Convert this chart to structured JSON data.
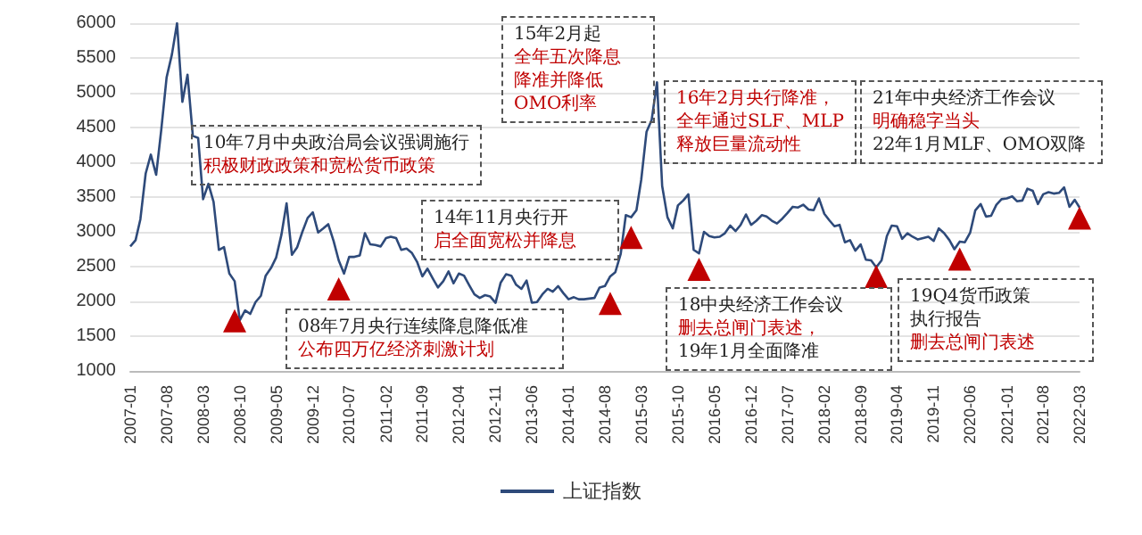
{
  "chart_data": {
    "type": "line",
    "x": [
      "2007-01",
      "2007-02",
      "2007-03",
      "2007-04",
      "2007-05",
      "2007-06",
      "2007-07",
      "2007-08",
      "2007-09",
      "2007-10",
      "2007-11",
      "2007-12",
      "2008-01",
      "2008-02",
      "2008-03",
      "2008-04",
      "2008-05",
      "2008-06",
      "2008-07",
      "2008-08",
      "2008-09",
      "2008-10",
      "2008-11",
      "2008-12",
      "2009-01",
      "2009-02",
      "2009-03",
      "2009-04",
      "2009-05",
      "2009-06",
      "2009-07",
      "2009-08",
      "2009-09",
      "2009-10",
      "2009-11",
      "2009-12",
      "2010-01",
      "2010-02",
      "2010-03",
      "2010-04",
      "2010-05",
      "2010-06",
      "2010-07",
      "2010-08",
      "2010-09",
      "2010-10",
      "2010-11",
      "2010-12",
      "2011-01",
      "2011-02",
      "2011-03",
      "2011-04",
      "2011-05",
      "2011-06",
      "2011-07",
      "2011-08",
      "2011-09",
      "2011-10",
      "2011-11",
      "2011-12",
      "2012-01",
      "2012-02",
      "2012-03",
      "2012-04",
      "2012-05",
      "2012-06",
      "2012-07",
      "2012-08",
      "2012-09",
      "2012-10",
      "2012-11",
      "2012-12",
      "2013-01",
      "2013-02",
      "2013-03",
      "2013-04",
      "2013-05",
      "2013-06",
      "2013-07",
      "2013-08",
      "2013-09",
      "2013-10",
      "2013-11",
      "2013-12",
      "2014-01",
      "2014-02",
      "2014-03",
      "2014-04",
      "2014-05",
      "2014-06",
      "2014-07",
      "2014-08",
      "2014-09",
      "2014-10",
      "2014-11",
      "2014-12",
      "2015-01",
      "2015-02",
      "2015-03",
      "2015-04",
      "2015-05",
      "2015-06",
      "2015-07",
      "2015-08",
      "2015-09",
      "2015-10",
      "2015-11",
      "2015-12",
      "2016-01",
      "2016-02",
      "2016-03",
      "2016-04",
      "2016-05",
      "2016-06",
      "2016-07",
      "2016-08",
      "2016-09",
      "2016-10",
      "2016-11",
      "2016-12",
      "2017-01",
      "2017-02",
      "2017-03",
      "2017-04",
      "2017-05",
      "2017-06",
      "2017-07",
      "2017-08",
      "2017-09",
      "2017-10",
      "2017-11",
      "2017-12",
      "2018-01",
      "2018-02",
      "2018-03",
      "2018-04",
      "2018-05",
      "2018-06",
      "2018-07",
      "2018-08",
      "2018-09",
      "2018-10",
      "2018-11",
      "2018-12",
      "2019-01",
      "2019-02",
      "2019-03",
      "2019-04",
      "2019-05",
      "2019-06",
      "2019-07",
      "2019-08",
      "2019-09",
      "2019-10",
      "2019-11",
      "2019-12",
      "2020-01",
      "2020-02",
      "2020-03",
      "2020-04",
      "2020-05",
      "2020-06",
      "2020-07",
      "2020-08",
      "2020-09",
      "2020-10",
      "2020-11",
      "2020-12",
      "2021-01",
      "2021-02",
      "2021-03",
      "2021-04",
      "2021-05",
      "2021-06",
      "2021-07",
      "2021-08",
      "2021-09",
      "2021-10",
      "2021-11",
      "2021-12",
      "2022-01",
      "2022-02",
      "2022-03"
    ],
    "series": [
      {
        "name": "上证指数",
        "color": "#2e4a7a",
        "values": [
          2790,
          2880,
          3180,
          3840,
          4110,
          3820,
          4470,
          5220,
          5550,
          6000,
          4870,
          5260,
          4380,
          4350,
          3470,
          3690,
          3430,
          2740,
          2780,
          2400,
          2290,
          1730,
          1870,
          1820,
          1990,
          2080,
          2370,
          2480,
          2630,
          2960,
          3410,
          2670,
          2780,
          3000,
          3200,
          3280,
          2990,
          3050,
          3110,
          2870,
          2590,
          2400,
          2640,
          2640,
          2660,
          2980,
          2820,
          2810,
          2790,
          2910,
          2930,
          2910,
          2740,
          2760,
          2700,
          2570,
          2360,
          2470,
          2330,
          2200,
          2290,
          2430,
          2260,
          2400,
          2370,
          2230,
          2100,
          2050,
          2090,
          2070,
          1980,
          2270,
          2390,
          2370,
          2240,
          2180,
          2300,
          1980,
          1990,
          2100,
          2180,
          2140,
          2220,
          2120,
          2030,
          2060,
          2030,
          2030,
          2040,
          2050,
          2200,
          2220,
          2360,
          2420,
          2680,
          3240,
          3210,
          3310,
          3750,
          4440,
          4610,
          5150,
          3660,
          3210,
          3050,
          3380,
          3450,
          3540,
          2740,
          2690,
          3000,
          2940,
          2920,
          2930,
          2980,
          3090,
          3010,
          3100,
          3250,
          3100,
          3160,
          3240,
          3220,
          3160,
          3120,
          3190,
          3270,
          3360,
          3350,
          3390,
          3320,
          3310,
          3480,
          3260,
          3170,
          3080,
          3100,
          2850,
          2880,
          2730,
          2820,
          2600,
          2590,
          2490,
          2590,
          2940,
          3090,
          3080,
          2900,
          2980,
          2930,
          2890,
          2910,
          2930,
          2870,
          3050,
          2980,
          2880,
          2750,
          2860,
          2850,
          2990,
          3310,
          3400,
          3220,
          3230,
          3390,
          3470,
          3480,
          3510,
          3440,
          3450,
          3620,
          3590,
          3400,
          3540,
          3570,
          3550,
          3560,
          3640,
          3360,
          3460,
          3350
        ]
      },
      {
        "type": "scatter",
        "marker": "triangle",
        "color": "#c00000",
        "x": [
          "2008-09",
          "2010-05",
          "2014-09",
          "2015-01",
          "2016-02",
          "2018-12",
          "2020-04",
          "2022-03"
        ],
        "values": [
          1720,
          2180,
          1970,
          2920,
          2460,
          2360,
          2610,
          3200
        ]
      }
    ],
    "xlim": [
      "2007-01",
      "2022-03"
    ],
    "xticks": [
      "2007-01",
      "2007-08",
      "2008-03",
      "2008-10",
      "2009-05",
      "2009-12",
      "2010-07",
      "2011-02",
      "2011-09",
      "2012-04",
      "2012-11",
      "2013-06",
      "2014-01",
      "2014-08",
      "2015-03",
      "2015-10",
      "2016-05",
      "2016-12",
      "2017-07",
      "2018-02",
      "2018-09",
      "2019-04",
      "2019-11",
      "2020-06",
      "2021-01",
      "2021-08",
      "2022-03"
    ],
    "ylim": [
      1000,
      6000
    ],
    "yticks": [
      1000,
      1500,
      2000,
      2500,
      3000,
      3500,
      4000,
      4500,
      5000,
      5500,
      6000
    ],
    "grid": "y",
    "legend": "bottom",
    "marker": "none",
    "line_style": "solid",
    "annotations": [
      "10年7月中央政治局会议强调施行",
      "积极财政政策和宽松货币政策",
      "08年7月央行连续降息降低准",
      "公布四万亿经济刺激计划",
      "15年2月起",
      "全年五次降息",
      "降准并降低",
      "OMO利率",
      "14年11月央行开",
      "启全面宽松并降息",
      "16年2月央行降准，",
      "全年通过SLF、MLP",
      "释放巨量流动性",
      "21年中央经济工作会议",
      "明确稳字当头",
      "22年1月MLF、OMO双降",
      "18中央经济工作会议",
      "删去总闸门表述，",
      "19年1月全面降准",
      "19Q4货币政策",
      "执行报告",
      "删去总闸门表述"
    ]
  }
}
